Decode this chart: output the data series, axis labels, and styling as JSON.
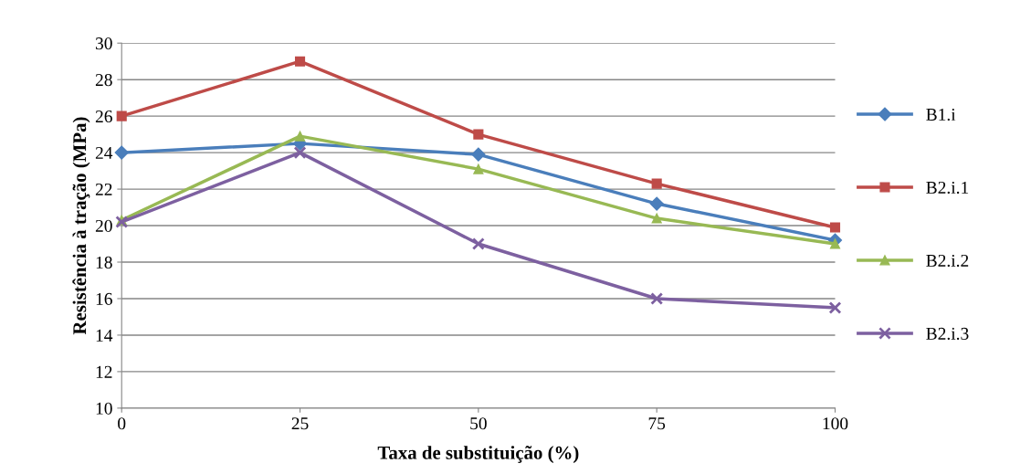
{
  "chart_data": {
    "type": "line",
    "xlabel": "Taxa de substituição (%)",
    "ylabel": "Resistência à tração (MPa)",
    "categories": [
      "0",
      "25",
      "50",
      "75",
      "100"
    ],
    "series": [
      {
        "name": "B1.i",
        "color": "#4a7ebb",
        "marker": "diamond",
        "values": [
          24.0,
          24.5,
          23.9,
          21.2,
          19.2
        ]
      },
      {
        "name": "B2.i.1",
        "color": "#be4b48",
        "marker": "square",
        "values": [
          26.0,
          29.0,
          25.0,
          22.3,
          19.9
        ]
      },
      {
        "name": "B2.i.2",
        "color": "#98b954",
        "marker": "triangle",
        "values": [
          20.3,
          24.9,
          23.1,
          20.4,
          19.0
        ]
      },
      {
        "name": "B2.i.3",
        "color": "#7d60a0",
        "marker": "cross",
        "values": [
          20.2,
          24.0,
          19.0,
          16.0,
          15.5
        ]
      }
    ],
    "ylim": [
      10,
      30
    ],
    "yticks": [
      10,
      12,
      14,
      16,
      18,
      20,
      22,
      24,
      26,
      28,
      30
    ],
    "grid": "y",
    "legend": "right",
    "line_style": "solid"
  }
}
